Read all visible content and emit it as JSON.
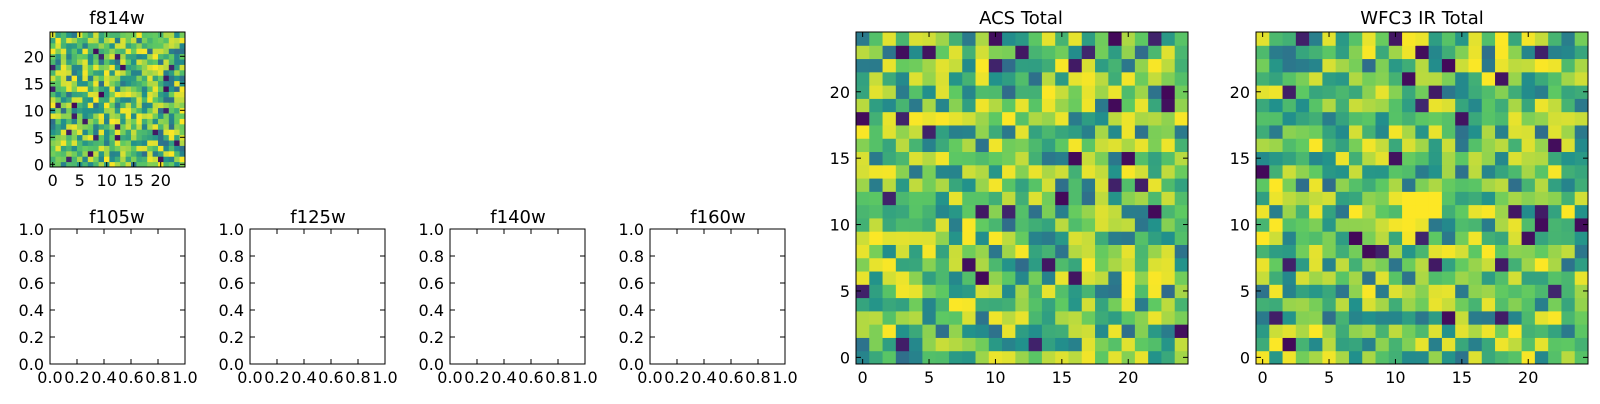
{
  "chart_data": [
    {
      "type": "heatmap",
      "title": "f814w",
      "grid_size": 25,
      "xticks": [
        0,
        5,
        10,
        15,
        20
      ],
      "yticks": [
        0,
        5,
        10,
        15,
        20
      ],
      "xlim": [
        -0.5,
        24.5
      ],
      "ylim": [
        -0.5,
        24.5
      ],
      "colormap": "viridis",
      "values_note": "random-looking noise field",
      "seed": 11
    },
    {
      "type": "heatmap",
      "title": "f105w",
      "empty": true,
      "xticks": [
        0.0,
        0.2,
        0.4,
        0.6,
        0.8,
        1.0
      ],
      "yticks": [
        0.0,
        0.2,
        0.4,
        0.6,
        0.8,
        1.0
      ],
      "xlim": [
        0.0,
        1.0
      ],
      "ylim": [
        0.0,
        1.0
      ]
    },
    {
      "type": "heatmap",
      "title": "f125w",
      "empty": true,
      "xticks": [
        0.0,
        0.2,
        0.4,
        0.6,
        0.8,
        1.0
      ],
      "yticks": [
        0.0,
        0.2,
        0.4,
        0.6,
        0.8,
        1.0
      ],
      "xlim": [
        0.0,
        1.0
      ],
      "ylim": [
        0.0,
        1.0
      ]
    },
    {
      "type": "heatmap",
      "title": "f140w",
      "empty": true,
      "xticks": [
        0.0,
        0.2,
        0.4,
        0.6,
        0.8,
        1.0
      ],
      "yticks": [
        0.0,
        0.2,
        0.4,
        0.6,
        0.8,
        1.0
      ],
      "xlim": [
        0.0,
        1.0
      ],
      "ylim": [
        0.0,
        1.0
      ]
    },
    {
      "type": "heatmap",
      "title": "f160w",
      "empty": true,
      "xticks": [
        0.0,
        0.2,
        0.4,
        0.6,
        0.8,
        1.0
      ],
      "yticks": [
        0.0,
        0.2,
        0.4,
        0.6,
        0.8,
        1.0
      ],
      "xlim": [
        0.0,
        1.0
      ],
      "ylim": [
        0.0,
        1.0
      ]
    },
    {
      "type": "heatmap",
      "title": "ACS Total",
      "grid_size": 25,
      "xticks": [
        0,
        5,
        10,
        15,
        20
      ],
      "yticks": [
        0,
        5,
        10,
        15,
        20
      ],
      "xlim": [
        -0.5,
        24.5
      ],
      "ylim": [
        -0.5,
        24.5
      ],
      "colormap": "viridis",
      "values_note": "random-looking noise field",
      "seed": 23
    },
    {
      "type": "heatmap",
      "title": "WFC3 IR Total",
      "grid_size": 25,
      "xticks": [
        0,
        5,
        10,
        15,
        20
      ],
      "yticks": [
        0,
        5,
        10,
        15,
        20
      ],
      "xlim": [
        -0.5,
        24.5
      ],
      "ylim": [
        -0.5,
        24.5
      ],
      "colormap": "viridis",
      "values_note": "noise field with bright source near center",
      "seed": 37,
      "bright_source": {
        "x": [
          11,
          13
        ],
        "y": [
          11,
          12
        ]
      }
    }
  ],
  "colors": {
    "viridis": [
      "#440154",
      "#3b528b",
      "#21918c",
      "#5ec962",
      "#fde725"
    ]
  }
}
